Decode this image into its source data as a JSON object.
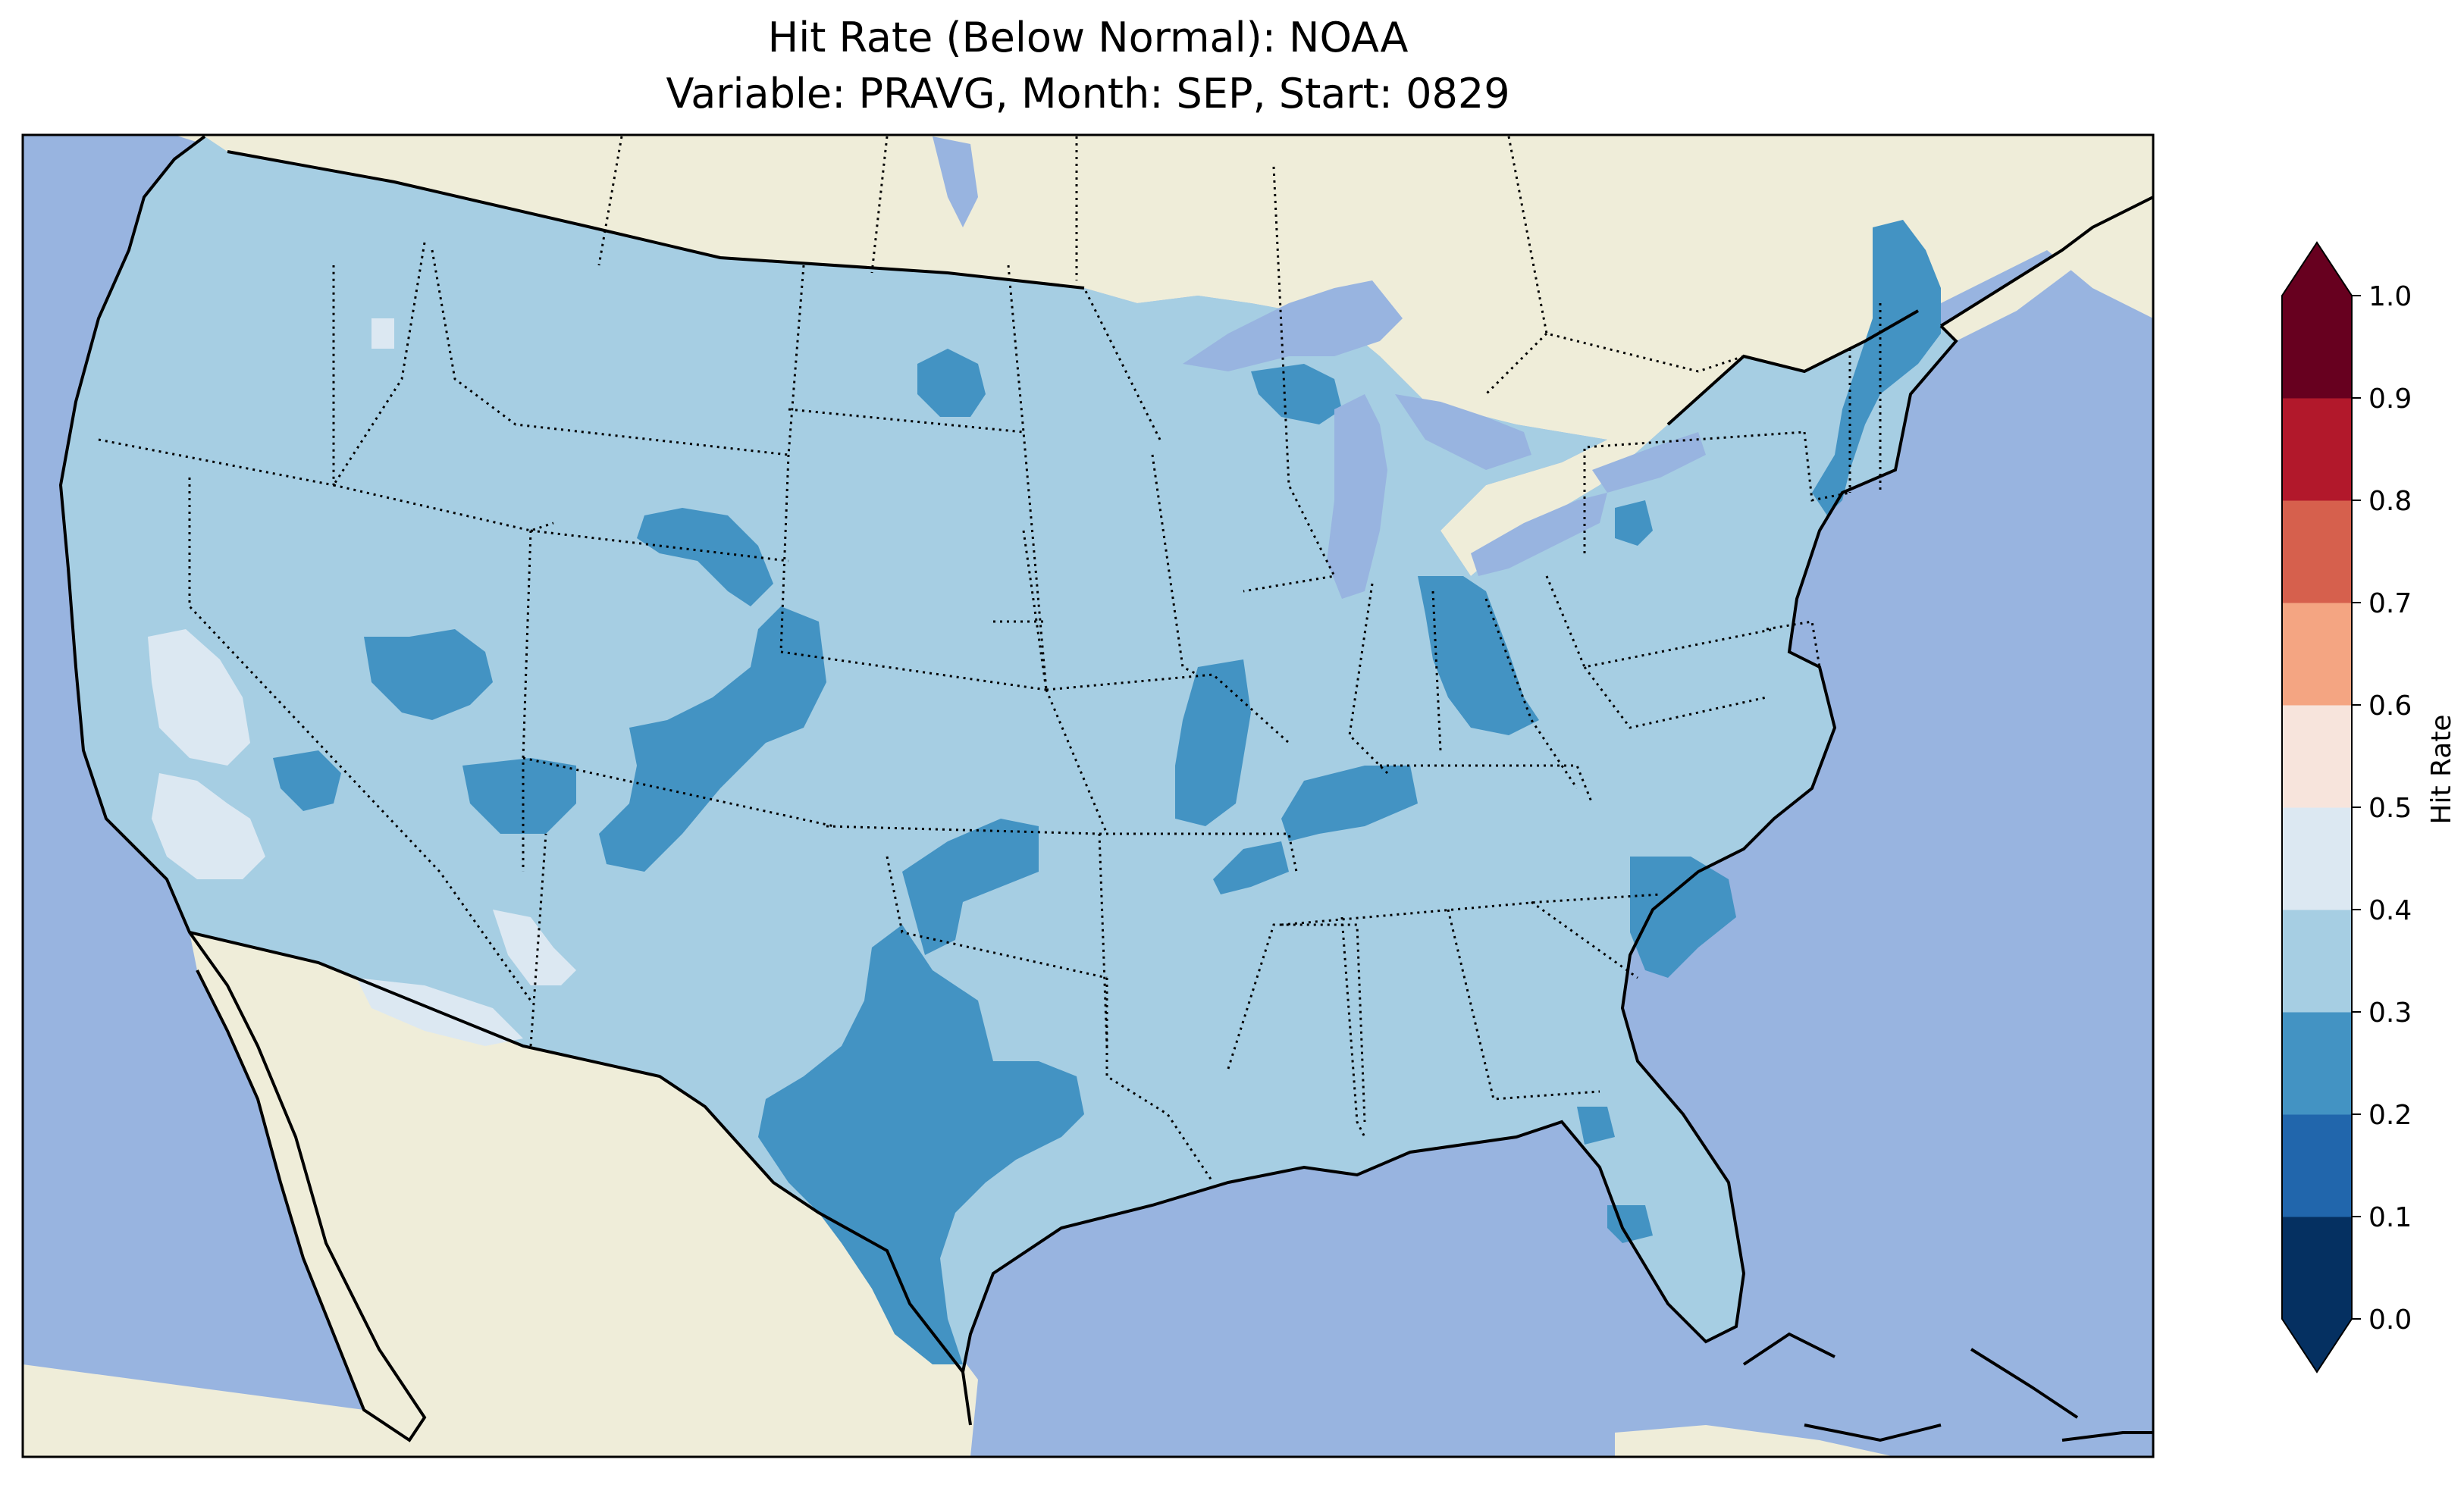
{
  "title": {
    "line1": "Hit Rate (Below Normal): NOAA",
    "line2": "Variable: PRAVG, Month: SEP, Start: 0829"
  },
  "colorbar": {
    "label": "Hit Rate",
    "ticks": [
      "0.0",
      "0.1",
      "0.2",
      "0.3",
      "0.4",
      "0.5",
      "0.6",
      "0.7",
      "0.8",
      "0.9",
      "1.0"
    ],
    "bins": [
      {
        "range": [
          0.0,
          0.1
        ],
        "color": "#053061"
      },
      {
        "range": [
          0.1,
          0.2
        ],
        "color": "#2166ac"
      },
      {
        "range": [
          0.2,
          0.3
        ],
        "color": "#4393c3"
      },
      {
        "range": [
          0.3,
          0.4
        ],
        "color": "#a6cee3"
      },
      {
        "range": [
          0.4,
          0.5
        ],
        "color": "#dce8f2"
      },
      {
        "range": [
          0.5,
          0.6
        ],
        "color": "#f7e4dc"
      },
      {
        "range": [
          0.6,
          0.7
        ],
        "color": "#f4a582"
      },
      {
        "range": [
          0.7,
          0.8
        ],
        "color": "#d6604d"
      },
      {
        "range": [
          0.8,
          0.9
        ],
        "color": "#b2182b"
      },
      {
        "range": [
          0.9,
          1.0
        ],
        "color": "#67001f"
      }
    ],
    "extend": "both"
  },
  "map": {
    "region": "Contiguous United States",
    "ocean_color": "#98b4e0",
    "land_color": "#efedd9",
    "dominant_bin": "0.3-0.4",
    "regions_0.2_0.3": [
      "Texas",
      "Colorado / Wyoming",
      "Indiana / Ohio",
      "South Carolina",
      "Maine / Massachusetts",
      "Northern Michigan",
      "North Dakota",
      "Nevada",
      "Arkansas / Kentucky",
      "Oklahoma"
    ],
    "regions_0.4_0.5": [
      "Central California",
      "Southern California",
      "Southern Arizona",
      "Northern Idaho"
    ]
  }
}
